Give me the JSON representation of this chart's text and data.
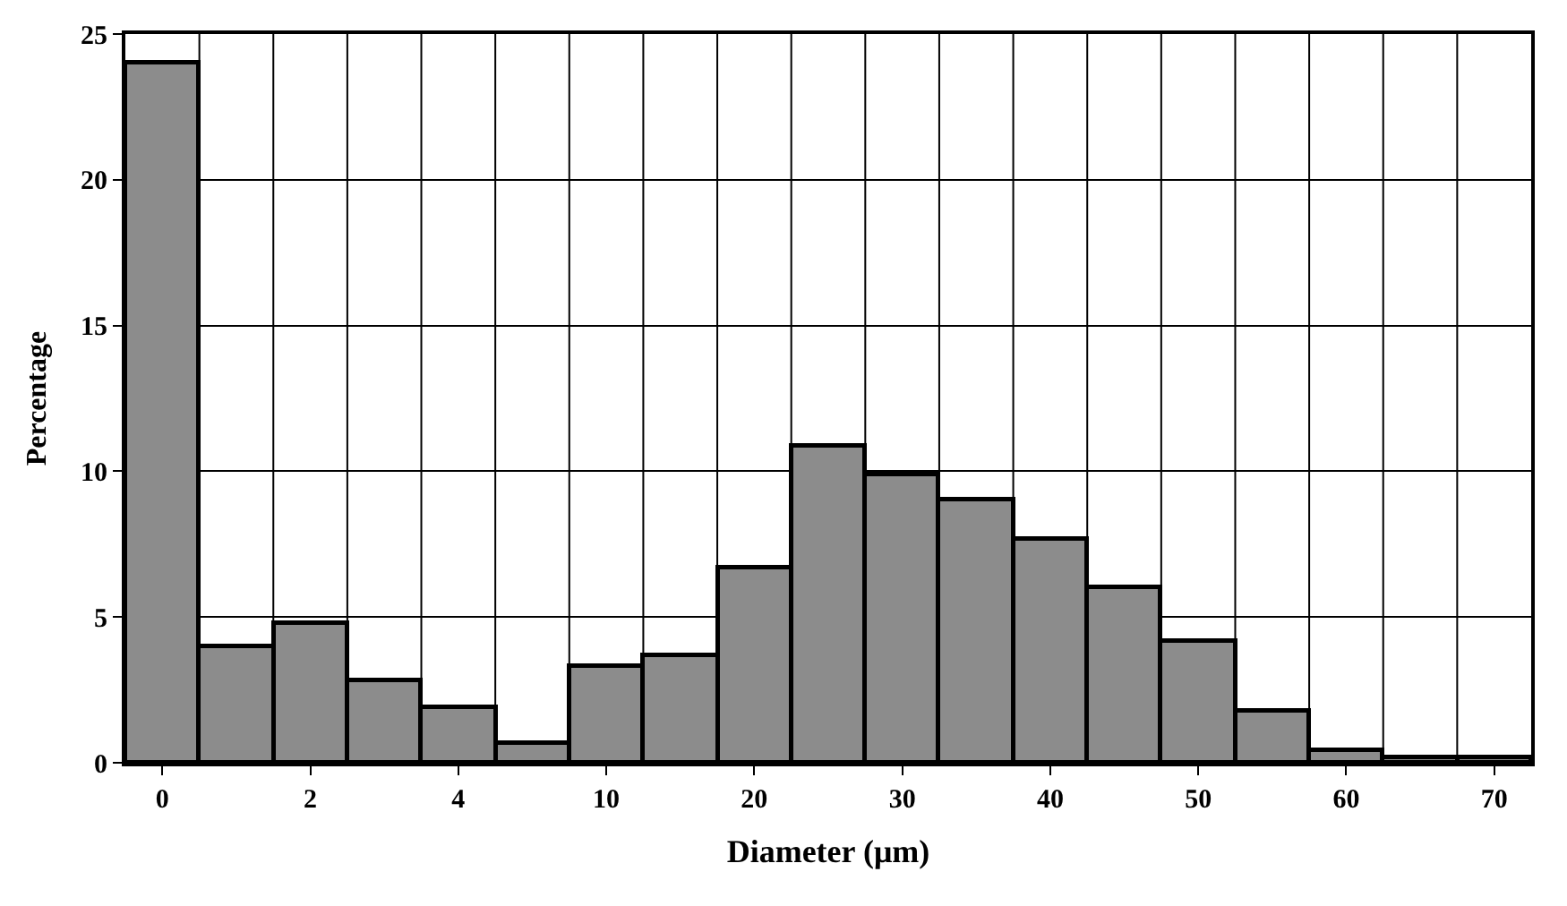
{
  "chart_data": {
    "type": "bar",
    "xlabel": "Diameter (μm)",
    "ylabel": "Percentage",
    "categories": [
      "0",
      null,
      "2",
      null,
      "4",
      null,
      "10",
      null,
      "20",
      null,
      "30",
      null,
      "40",
      null,
      "50",
      null,
      "60",
      null,
      "70"
    ],
    "values": [
      24,
      4.0,
      4.8,
      2.8,
      1.9,
      0.7,
      3.3,
      3.7,
      6.7,
      10.9,
      9.9,
      9.0,
      7.7,
      6.0,
      4.2,
      1.8,
      0.4,
      0.2,
      0.2
    ],
    "color": "#8c8c8c",
    "ylim": [
      0,
      25
    ],
    "yticks": [
      0,
      5,
      10,
      15,
      20,
      25
    ],
    "grid": true
  }
}
